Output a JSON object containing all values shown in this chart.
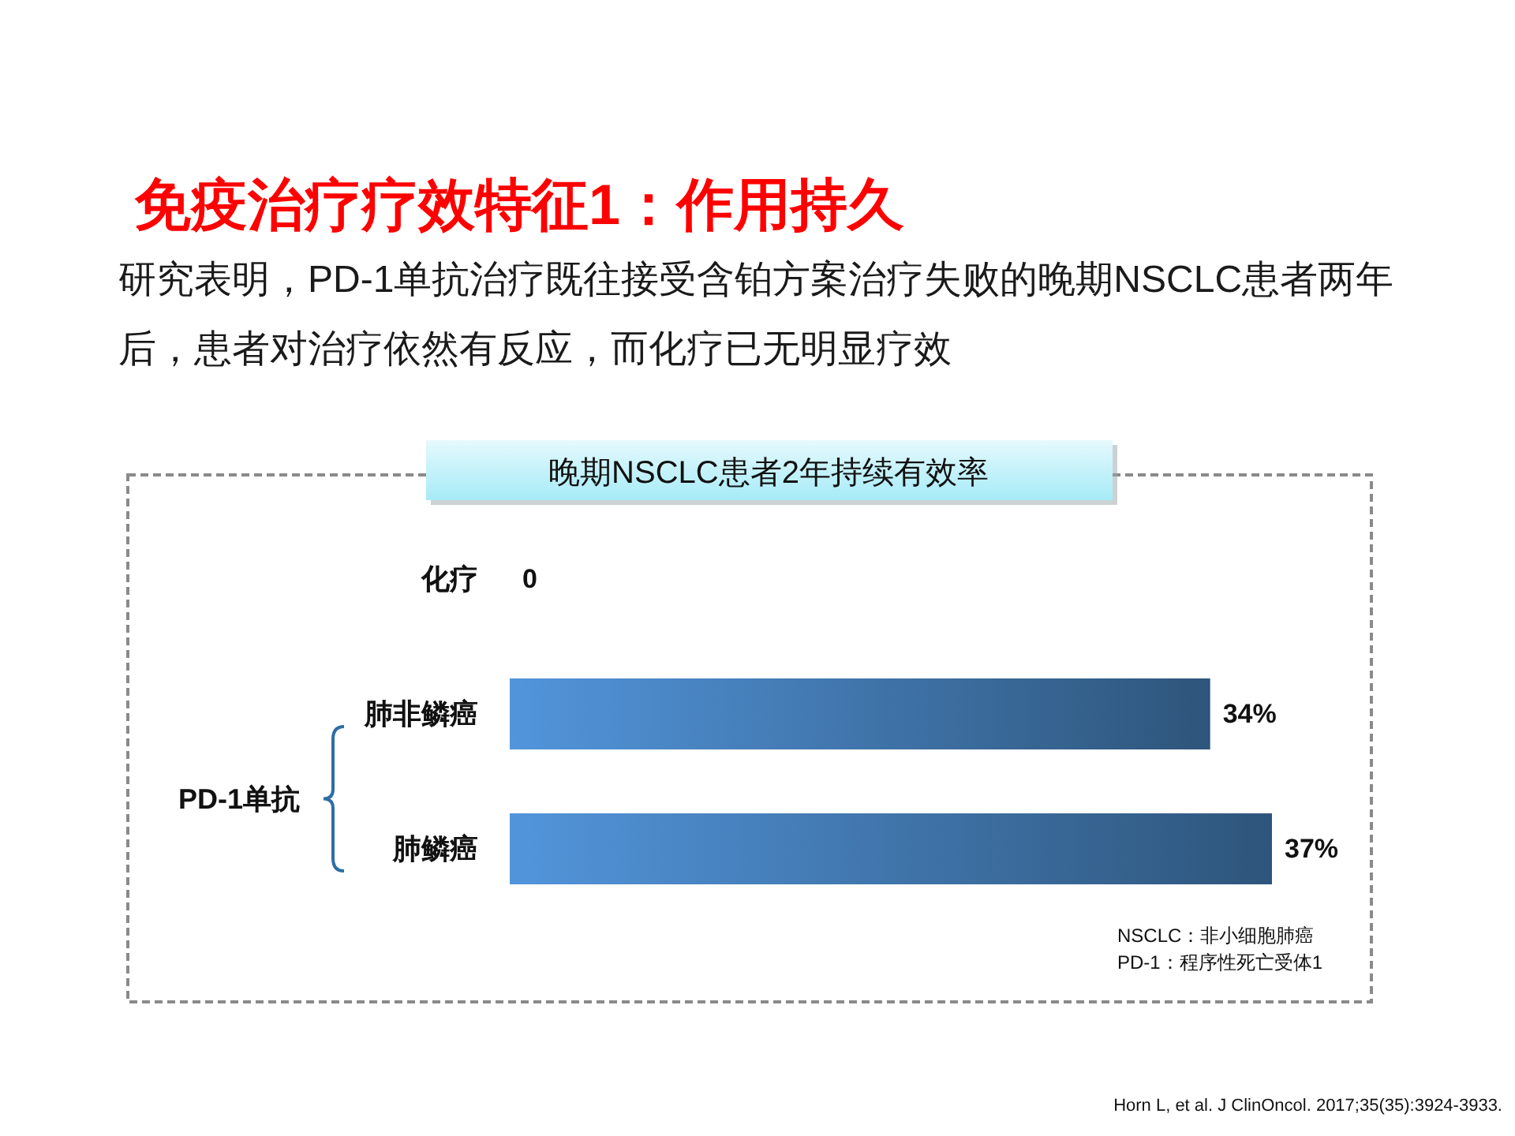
{
  "chart_data": {
    "type": "bar",
    "orientation": "horizontal",
    "title": "免疫治疗疗效特征1：作用持久",
    "subtitle": "研究表明，PD-1单抗治疗既往接受含铂方案治疗失败的晚期NSCLC患者两年后，患者对治疗依然有反应，而化疗已无明显疗效",
    "categories": [
      "化疗",
      "肺非鳞癌",
      "肺鳞癌"
    ],
    "series": [
      {
        "color": "#4279af",
        "values": [
          0,
          34,
          37
        ],
        "value_labels": [
          "0",
          "34%",
          "37%"
        ]
      }
    ],
    "annotations": [
      "晚期NSCLC患者2年持续有效率",
      "PD-1单抗",
      "NSCLC：非小细胞肺癌",
      "PD-1：程序性死亡受体1",
      "Horn L, et al. J ClinOncol. 2017;35(35):3924-3933."
    ]
  }
}
